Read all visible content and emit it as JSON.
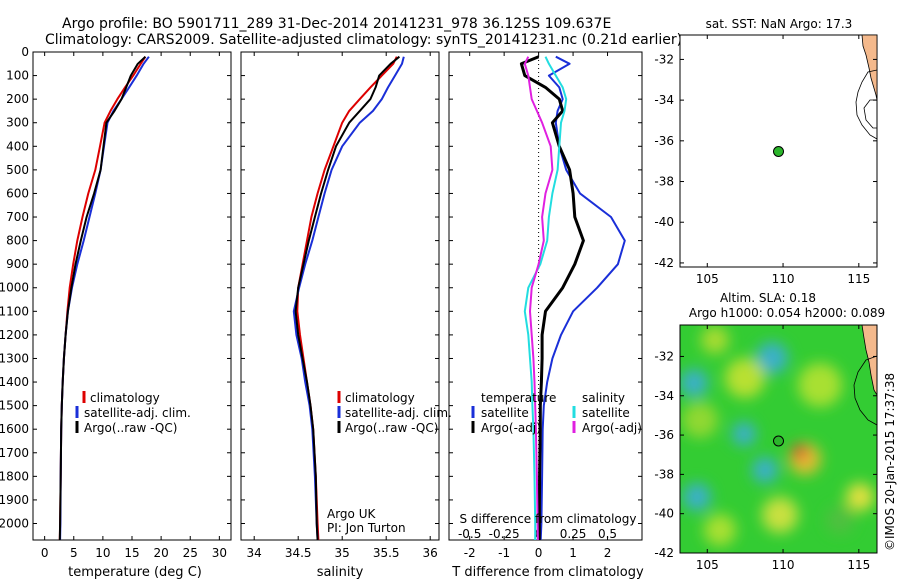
{
  "header": {
    "line1": "Argo profile: BO 5901711_289 31-Dec-2014 20141231_978 36.125S 109.637E",
    "line2": "Climatology: CARS2009. Satellite-adjusted climatology: synTS_20141231.nc (0.21d earlier)"
  },
  "colors": {
    "climatology": "#dd0000",
    "satellite": "#1a2fd8",
    "argo": "#000000",
    "sal_satellite": "#22dde0",
    "sal_argo": "#e020e0",
    "land": "#f4b98c",
    "sla_base": "#33cc33"
  },
  "panel_map": {
    "title": "sat. SST: NaN Argo: 17.3",
    "xticks": [
      "105",
      "110",
      "115"
    ],
    "yticks": [
      "-32",
      "-34",
      "-36",
      "-38",
      "-40",
      "-42"
    ],
    "marker": {
      "lon": 109.637,
      "lat": -36.125
    }
  },
  "panel_sla": {
    "title1": "Altim. SLA: 0.18",
    "title2": "Argo h1000: 0.054 h2000: 0.089",
    "xticks": [
      "105",
      "110",
      "115"
    ],
    "yticks": [
      "-32",
      "-34",
      "-36",
      "-38",
      "-40",
      "-42"
    ],
    "copyright": "©IMOS 20-Jan-2015 17:37:38"
  },
  "legend_profiles": {
    "clim": "climatology",
    "sat": "satellite-adj. clim.",
    "argo": "Argo(..raw -QC)"
  },
  "legend_diff": {
    "temp_header": "temperature",
    "sal_header": "salinity",
    "sat": "satellite",
    "argo": "Argo(-adj)"
  },
  "credit": {
    "line1": "Argo UK",
    "line2": "PI: Jon Turton"
  },
  "chart_data": [
    {
      "type": "line",
      "xlabel": "temperature (deg C)",
      "xticks": [
        "0",
        "5",
        "10",
        "15",
        "20",
        "25",
        "30"
      ],
      "xlim": [
        -2,
        32
      ],
      "yticks": [
        "0",
        "100",
        "200",
        "300",
        "400",
        "500",
        "600",
        "700",
        "800",
        "900",
        "1000",
        "1100",
        "1200",
        "1300",
        "1400",
        "1500",
        "1600",
        "1700",
        "1800",
        "1900",
        "2000"
      ],
      "ylim": [
        2070,
        0
      ],
      "series": [
        {
          "name": "climatology",
          "x": [
            17.3,
            16.5,
            15.2,
            13.8,
            12.5,
            11.3,
            10.3,
            9.5,
            8.7,
            7.5,
            6.5,
            5.6,
            4.9,
            4.3,
            3.9,
            3.6,
            3.3,
            3.1,
            2.95,
            2.85,
            2.75,
            2.65,
            2.6
          ],
          "y": [
            20,
            50,
            100,
            150,
            200,
            250,
            300,
            400,
            500,
            600,
            700,
            800,
            900,
            1000,
            1100,
            1200,
            1300,
            1400,
            1500,
            1600,
            1800,
            2000,
            2070
          ]
        },
        {
          "name": "satellite-adj. clim.",
          "x": [
            17.9,
            17.0,
            15.8,
            14.5,
            13.2,
            11.8,
            10.8,
            10.2,
            9.6,
            8.7,
            7.7,
            6.7,
            5.6,
            4.7,
            4.0,
            3.6,
            3.3,
            3.1,
            2.95,
            2.85,
            2.75,
            2.7,
            2.65
          ],
          "y": [
            20,
            50,
            100,
            150,
            200,
            250,
            300,
            400,
            500,
            600,
            700,
            800,
            900,
            1000,
            1100,
            1200,
            1300,
            1400,
            1500,
            1600,
            1800,
            2000,
            2070
          ]
        },
        {
          "name": "Argo(..raw -QC)",
          "x": [
            17.3,
            16.0,
            14.8,
            14.0,
            13.2,
            12.0,
            10.6,
            10.1,
            9.6,
            8.5,
            7.2,
            6.2,
            5.3,
            4.6,
            4.0,
            3.6,
            3.3,
            3.1,
            2.95,
            2.85,
            2.75,
            2.65,
            2.6
          ],
          "y": [
            20,
            50,
            100,
            150,
            200,
            250,
            300,
            400,
            500,
            600,
            700,
            800,
            900,
            1000,
            1100,
            1200,
            1300,
            1400,
            1500,
            1600,
            1800,
            2000,
            2070
          ]
        }
      ]
    },
    {
      "type": "line",
      "xlabel": "salinity",
      "xticks": [
        "34",
        "34.5",
        "35",
        "35.5",
        "36"
      ],
      "xlim": [
        33.85,
        36.1
      ],
      "series": [
        {
          "name": "climatology",
          "x": [
            35.62,
            35.58,
            35.45,
            35.32,
            35.2,
            35.08,
            35.0,
            34.9,
            34.8,
            34.72,
            34.65,
            34.6,
            34.55,
            34.5,
            34.49,
            34.52,
            34.56,
            34.6,
            34.64,
            34.67,
            34.7,
            34.72,
            34.73
          ],
          "y": [
            20,
            50,
            100,
            150,
            200,
            250,
            300,
            400,
            500,
            600,
            700,
            800,
            900,
            1000,
            1100,
            1200,
            1300,
            1400,
            1500,
            1600,
            1800,
            2000,
            2070
          ]
        },
        {
          "name": "satellite-adj. clim.",
          "x": [
            35.7,
            35.68,
            35.6,
            35.52,
            35.45,
            35.35,
            35.2,
            35.0,
            34.88,
            34.8,
            34.73,
            34.66,
            34.58,
            34.51,
            34.45,
            34.48,
            34.54,
            34.58,
            34.63,
            34.66,
            34.69,
            34.71,
            34.72
          ],
          "y": [
            20,
            50,
            100,
            150,
            200,
            250,
            300,
            400,
            500,
            600,
            700,
            800,
            900,
            1000,
            1100,
            1200,
            1300,
            1400,
            1500,
            1600,
            1800,
            2000,
            2070
          ]
        },
        {
          "name": "Argo(..raw -QC)",
          "x": [
            35.65,
            35.55,
            35.42,
            35.38,
            35.32,
            35.2,
            35.08,
            34.93,
            34.84,
            34.76,
            34.69,
            34.62,
            34.56,
            34.5,
            34.47,
            34.5,
            34.55,
            34.6,
            34.64,
            34.67,
            34.7,
            34.71,
            34.72
          ],
          "y": [
            20,
            50,
            100,
            150,
            200,
            250,
            300,
            400,
            500,
            600,
            700,
            800,
            900,
            1000,
            1100,
            1200,
            1300,
            1400,
            1500,
            1600,
            1800,
            2000,
            2070
          ]
        }
      ]
    },
    {
      "type": "line",
      "xlabel": "T difference from climatology",
      "xlabel_top": "S difference from climatology",
      "xticks": [
        "-2",
        "-1",
        "0",
        "1",
        "2"
      ],
      "xticks_top": [
        "-0.5",
        "-0.25",
        "0",
        "0.25",
        "0.5"
      ],
      "xlim": [
        -2.6,
        3.0
      ],
      "series": [
        {
          "name": "temperature satellite",
          "x": [
            0.5,
            0.9,
            0.3,
            0.6,
            0.7,
            0.55,
            0.5,
            0.6,
            0.8,
            1.2,
            2.1,
            2.5,
            2.3,
            1.7,
            1.0,
            0.65,
            0.4,
            0.25,
            0.15,
            0.12,
            0.1,
            0.08,
            0.06
          ],
          "y": [
            20,
            50,
            100,
            150,
            200,
            250,
            300,
            400,
            500,
            600,
            700,
            800,
            900,
            1000,
            1100,
            1200,
            1300,
            1400,
            1500,
            1600,
            1800,
            2000,
            2070
          ]
        },
        {
          "name": "temperature Argo(-adj)",
          "x": [
            0.0,
            -0.5,
            -0.4,
            0.2,
            0.6,
            0.7,
            0.4,
            0.6,
            0.9,
            1.0,
            1.05,
            1.3,
            1.05,
            0.7,
            0.2,
            0.1,
            0.1,
            0.08,
            0.05,
            0.05,
            0.03,
            0.02,
            0.02
          ],
          "y": [
            20,
            50,
            100,
            150,
            200,
            250,
            300,
            400,
            500,
            600,
            700,
            800,
            900,
            1000,
            1100,
            1200,
            1300,
            1400,
            1500,
            1600,
            1800,
            2000,
            2070
          ]
        },
        {
          "name": "salinity satellite",
          "x": [
            0.2,
            0.3,
            0.5,
            0.7,
            0.8,
            0.75,
            0.65,
            0.6,
            0.55,
            0.4,
            0.3,
            0.25,
            0.05,
            -0.3,
            -0.4,
            -0.3,
            -0.25,
            -0.2,
            -0.18,
            -0.15,
            -0.12,
            -0.1,
            -0.1
          ],
          "y": [
            20,
            50,
            100,
            150,
            200,
            250,
            300,
            400,
            500,
            600,
            700,
            800,
            900,
            1000,
            1100,
            1200,
            1300,
            1400,
            1500,
            1600,
            1800,
            2000,
            2070
          ]
        },
        {
          "name": "salinity Argo(-adj)",
          "x": [
            -0.3,
            -0.4,
            -0.3,
            -0.25,
            -0.2,
            -0.05,
            0.1,
            0.35,
            0.4,
            0.2,
            0.1,
            0.15,
            0.0,
            -0.2,
            -0.25,
            -0.2,
            -0.15,
            -0.12,
            -0.1,
            -0.08,
            -0.05,
            -0.03,
            -0.02
          ],
          "y": [
            20,
            50,
            100,
            150,
            200,
            250,
            300,
            400,
            500,
            600,
            700,
            800,
            900,
            1000,
            1100,
            1200,
            1300,
            1400,
            1500,
            1600,
            1800,
            2000,
            2070
          ]
        }
      ]
    }
  ]
}
